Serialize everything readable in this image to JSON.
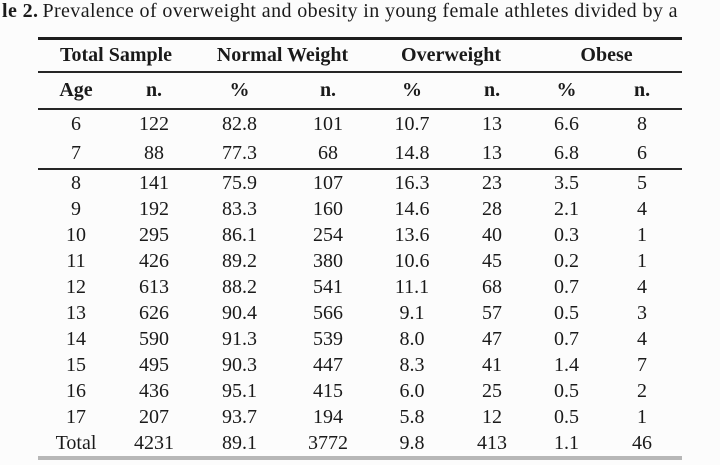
{
  "caption": {
    "bold_prefix": "le 2.",
    "text": "Prevalence of overweight and obesity in young female athletes divided by a"
  },
  "table": {
    "group_headers": [
      "Total Sample",
      "Normal Weight",
      "Overweight",
      "Obese"
    ],
    "column_headers": [
      "Age",
      "n.",
      "%",
      "n.",
      "%",
      "n.",
      "%",
      "n."
    ],
    "rows_ages_6_7": [
      [
        "6",
        "122",
        "82.8",
        "101",
        "10.7",
        "13",
        "6.6",
        "8"
      ],
      [
        "7",
        "88",
        "77.3",
        "68",
        "14.8",
        "13",
        "6.8",
        "6"
      ]
    ],
    "rows_ages_8_17_total": [
      [
        "8",
        "141",
        "75.9",
        "107",
        "16.3",
        "23",
        "3.5",
        "5"
      ],
      [
        "9",
        "192",
        "83.3",
        "160",
        "14.6",
        "28",
        "2.1",
        "4"
      ],
      [
        "10",
        "295",
        "86.1",
        "254",
        "13.6",
        "40",
        "0.3",
        "1"
      ],
      [
        "11",
        "426",
        "89.2",
        "380",
        "10.6",
        "45",
        "0.2",
        "1"
      ],
      [
        "12",
        "613",
        "88.2",
        "541",
        "11.1",
        "68",
        "0.7",
        "4"
      ],
      [
        "13",
        "626",
        "90.4",
        "566",
        "9.1",
        "57",
        "0.5",
        "3"
      ],
      [
        "14",
        "590",
        "91.3",
        "539",
        "8.0",
        "47",
        "0.7",
        "4"
      ],
      [
        "15",
        "495",
        "90.3",
        "447",
        "8.3",
        "41",
        "1.4",
        "7"
      ],
      [
        "16",
        "436",
        "95.1",
        "415",
        "6.0",
        "25",
        "0.5",
        "2"
      ],
      [
        "17",
        "207",
        "93.7",
        "194",
        "5.8",
        "12",
        "0.5",
        "1"
      ],
      [
        "Total",
        "4231",
        "89.1",
        "3772",
        "9.8",
        "413",
        "1.1",
        "46"
      ]
    ],
    "colors": {
      "rule_dark": "#1e1e1e",
      "rule_medium": "#262626",
      "rule_light_bottom": "#b7b7b7",
      "text": "#1a1a1a",
      "background": "#fcfcfc"
    }
  }
}
